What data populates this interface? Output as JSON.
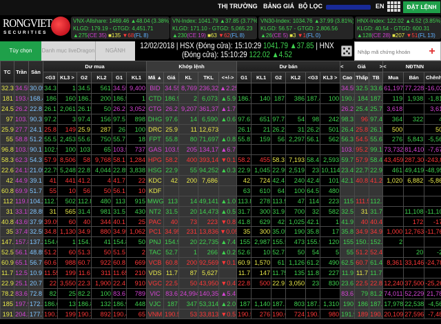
{
  "nav": {
    "market": "THỊ TRƯỜNG",
    "board": "BẢNG GIÁ",
    "filter": "BỘ LỌC",
    "lang": "EN",
    "order": "ĐẶT LỆNH"
  },
  "logo": {
    "name": "RONGVIET",
    "sub": "SECURITIES"
  },
  "indices": [
    {
      "name": "VNX-Allshare: 1469.46 ▲48.04 (3.38%)",
      "vol": "KLGD: 179.19 - GTGD: 4,451.71",
      "up": "▲275",
      "ce": "(CE 35)",
      "ref": "■135",
      "down": "▼68",
      "fl": "(FL 8)"
    },
    {
      "name": "VN-Index: 1041.79 ▲37.85 (3.77%)",
      "vol": "KLGD: 171.10 - GTGD: 5,065.23",
      "up": "▲230",
      "ce": "(CE 19)",
      "ref": "■63",
      "down": "▼62",
      "fl": "(FL 8)"
    },
    {
      "name": "VN30-Index: 1034.76 ▲37.99 (3.81%)",
      "vol": "KLGD: 56.57 - GTGD: 2,806.56",
      "up": "▲26",
      "ce": "(CE 5)",
      "ref": "■3",
      "down": "▼1",
      "fl": "(FL 0)"
    },
    {
      "name": "HNX-Index: 122.02 ▲4.52 (3.85%)",
      "vol": "KLGD: 40.54 - GTGD: 600.31",
      "up": "▲128",
      "ce": "(CE 28)",
      "ref": "■207",
      "down": "▼51",
      "fl": "(FL 13)"
    }
  ],
  "tabs": {
    "custom": "Tùy chọn",
    "watchlist": "Danh mục liveDragon",
    "sector": "NGÀNH"
  },
  "status": {
    "line1a": "12/02/2018 | HSX (Đóng cửa): 15:10:29",
    "hsx": "1041.79 ▲37.85",
    "line1b": "| HNX",
    "line2a": "(Đóng cửa): 15:10:29",
    "hnx": "122.02 ▲4.52"
  },
  "search": {
    "placeholder": "Nhập mã chứng khoán",
    "add": "+"
  },
  "colors": {
    "up": "#3fd24f",
    "down": "#ff3838",
    "ref": "#e8e84a",
    "ceil": "#d444d4",
    "floor": "#7fc4ff",
    "accent": "#1fa04a"
  },
  "table": {
    "groups": {
      "buy": "Dư mua",
      "match": "Khớp lệnh",
      "sell": "Dư bán",
      "price": "Giá",
      "foreign": "NĐTNN",
      "prev": "<",
      "next": ">"
    },
    "headers": [
      "TC",
      "Trần",
      "Sàn",
      "<G3",
      "KL3 >",
      "G2",
      "KL2",
      "G1",
      "KL1",
      "Mã ▲",
      "Giá",
      "KL",
      "TKL",
      "<+/->",
      "G1",
      "KL1",
      "G2",
      "KL2",
      "<G3",
      "KL3 >",
      "Cao",
      "Thấp",
      "TB",
      "Mua",
      "Bán",
      "Chênh"
    ],
    "rows": [
      [
        "32.3",
        "34.55",
        "30.05",
        "34.3",
        "1",
        "34.5",
        "561",
        "34.55",
        "9,400",
        "BID",
        "34.55",
        "8,769",
        "236,327",
        "▲2.25",
        "",
        "",
        "",
        "",
        "",
        "",
        "34.55",
        "32.5",
        "33.65",
        "61,197",
        "77,228",
        "-16,03"
      ],
      [
        "181",
        "193.6",
        "168.4",
        "186",
        "160",
        "186.2",
        "200",
        "186.5",
        "1",
        "CTD",
        "186.9",
        "2",
        "6,073",
        "▲5.9",
        "186.9",
        "140",
        "187",
        "386",
        "187.4",
        "100",
        "190.8",
        "184",
        "187.72",
        "119",
        "1,938",
        "-1,81"
      ],
      [
        "24.5",
        "26.2",
        "22.8",
        "26.1",
        "2,061",
        "26.15",
        "50",
        "26.2",
        "3,052",
        "CTG",
        "26.2",
        "9,207",
        "361,376",
        "▲1.7",
        "",
        "",
        "",
        "",
        "",
        "",
        "26.2",
        "25.4",
        "25.78",
        "3,618",
        "",
        "3,61"
      ],
      [
        "97",
        "103.7",
        "90.3",
        "97.2",
        "3",
        "97.4",
        "156",
        "97.5",
        "898",
        "DHG",
        "97.6",
        "14",
        "6,590",
        "▲0.6",
        "97.6",
        "651",
        "97.7",
        "54",
        "98",
        "242",
        "98.3",
        "96",
        "97.43",
        "364",
        "322",
        "4"
      ],
      [
        "25.9",
        "27.7",
        "24.1",
        "25.8",
        "149",
        "25.9",
        "287",
        "26",
        "100",
        "DRC",
        "25.9",
        "11",
        "12,673",
        "",
        "26.15",
        "21",
        "26.2",
        "31",
        "26.25",
        "501",
        "26.4",
        "25.8",
        "26.13",
        "500",
        "",
        "50"
      ],
      [
        "55",
        "58.8",
        "51.2",
        "55.5",
        "2,453",
        "55.6",
        "750",
        "55.7",
        "18",
        "FPT",
        "55.8",
        "80",
        "71,697",
        "▲0.8",
        "55.8",
        "159",
        "56",
        "2,297",
        "56.1",
        "562",
        "56.3",
        "54.5",
        "55.62",
        "276",
        "5,843",
        "-5,56"
      ],
      [
        "96.8",
        "103.5",
        "90.1",
        "102.9",
        "100",
        "103",
        "65",
        "103.5",
        "737",
        "GAS",
        "103.5",
        "205",
        "134,174",
        "▲6.7",
        "",
        "",
        "",
        "",
        "",
        "",
        "103.5",
        "95.2",
        "99.1",
        "73,732",
        "81,410",
        "-7,67"
      ],
      [
        "58.3",
        "62.3",
        "54.3",
        "57.9",
        "8,506",
        "58",
        "9,768",
        "58.1",
        "1,284",
        "HPG",
        "58.2",
        "400",
        "393,145",
        "▼0.1",
        "58.2",
        "455",
        "58.3",
        "7,193",
        "58.4",
        "2,593",
        "59.7",
        "57.9",
        "58.49",
        "43,459",
        "287,308",
        "-243,8"
      ],
      [
        "22.6",
        "24.15",
        "21.05",
        "22.75",
        "5,248",
        "22.8",
        "4,044",
        "22.85",
        "3,838",
        "HSG",
        "22.9",
        "55",
        "94,252",
        "▲0.3",
        "22.9",
        "1,045",
        "22.95",
        "2,519",
        "23",
        "10,114",
        "23.45",
        "22.75",
        "22.93",
        "461",
        "49,419",
        "-48,95"
      ],
      [
        "42",
        "44.9",
        "39.1",
        "41",
        "441",
        "41.2",
        "4",
        "41.7",
        "22",
        "KDC",
        "42",
        "200",
        "7,686",
        "",
        "42",
        "724",
        "42.4",
        "240",
        "42.45",
        "101",
        "42.1",
        "40.8",
        "41.22",
        "1,020",
        "6,882",
        "-5,86"
      ],
      [
        "60.8",
        "69.9",
        "51.7",
        "55",
        "10",
        "56",
        "50",
        "56.1",
        "10",
        "KDF",
        "",
        "",
        "",
        "",
        "63",
        "610",
        "64",
        "100",
        "64.5",
        "480",
        "",
        "",
        "",
        "",
        "",
        ""
      ],
      [
        "112",
        "119.8",
        "104.2",
        "112.7",
        "502",
        "112.8",
        "480",
        "113",
        "915",
        "MWG",
        "113",
        "14",
        "49,141",
        "▲1.0",
        "113.8",
        "278",
        "113.9",
        "47",
        "114",
        "223",
        "115",
        "111.5",
        "112.35",
        "",
        "",
        ""
      ],
      [
        "31",
        "33.15",
        "28.85",
        "31",
        "565",
        "31.4",
        "981",
        "31.5",
        "430",
        "NT2",
        "31.5",
        "20",
        "14,473",
        "▲0.5",
        "31.7",
        "300",
        "31.9",
        "700",
        "32",
        "582",
        "32.5",
        "31",
        "31.78",
        "",
        "11,108",
        "-11,10"
      ],
      [
        "40.8",
        "43.65",
        "37.95",
        "39.05",
        "60",
        "40",
        "344",
        "40.1",
        "25",
        "PAC",
        "40",
        "73",
        "223",
        "▼0.8",
        "41.8",
        "629",
        "42",
        "1,025",
        "42.1",
        "1",
        "41.9",
        "40",
        "40.43",
        "",
        "172",
        "-17"
      ],
      [
        "35",
        "37.45",
        "32.55",
        "34.8",
        "1,130",
        "34.9",
        "880",
        "34.95",
        "1,062",
        "PC1",
        "34.95",
        "231",
        "13,836",
        "▼0.05",
        "35",
        "300",
        "35.05",
        "190",
        "35.8",
        "17",
        "35.8",
        "34.9",
        "34.99",
        "1,000",
        "12,763",
        "-11,76"
      ],
      [
        "147.5",
        "157.8",
        "137.2",
        "154.6",
        "1",
        "154.7",
        "41",
        "154.8",
        "50",
        "PNJ",
        "154.9",
        "20",
        "22,735",
        "▲7.4",
        "155",
        "2,987",
        "155.5",
        "473",
        "155.9",
        "120",
        "155",
        "150.2",
        "152.18",
        "2",
        "",
        ""
      ],
      [
        "52.5",
        "56.1",
        "48.85",
        "51.2",
        "60",
        "51.3",
        "50",
        "51.5",
        "2",
        "TAC",
        "52.7",
        "1",
        "266",
        "▲0.2",
        "52.6",
        "10",
        "52.7",
        "50",
        "54",
        "5",
        "55",
        "51.2",
        "52.43",
        "",
        "20",
        "-2"
      ],
      [
        "60.9",
        "65.1",
        "56.7",
        "60.6",
        "988",
        "60.7",
        "922",
        "60.8",
        "669",
        "VCB",
        "60.8",
        "200",
        "92,569",
        "▼0.1",
        "60.9",
        "1,570",
        "61",
        "1,126",
        "61.2",
        "490",
        "62.5",
        "60.7",
        "61.43",
        "8,361",
        "33,146",
        "-24,78"
      ],
      [
        "11.7",
        "12.5",
        "10.9",
        "11.55",
        "199",
        "11.6",
        "311",
        "11.65",
        "210",
        "VDS",
        "11.7",
        "87",
        "5,627",
        "",
        "11.7",
        "147",
        "11.75",
        "135",
        "11.8",
        "227",
        "11.9",
        "11.7",
        "11.77",
        "",
        "",
        ""
      ],
      [
        "22.9",
        "25.1",
        "20.7",
        "22",
        "3,550",
        "22.3",
        "1,900",
        "22.4",
        "910",
        "VGC",
        "22.5",
        "50",
        "43,950",
        "▼0.4",
        "22.8",
        "500",
        "22.9",
        "3,050",
        "23",
        "830",
        "23.6",
        "22.5",
        "22.88",
        "12,240",
        "37,500",
        "-25,26"
      ],
      [
        "78.2",
        "83.6",
        "72.8",
        "82",
        "25",
        "82.2",
        "100",
        "83.6",
        "789",
        "VIC",
        "83.6",
        "24,994",
        "140,359",
        "▲5.4",
        "",
        "",
        "",
        "",
        "",
        "",
        "83.6",
        "79",
        "81.25",
        "74,011",
        "52,229",
        "21,78"
      ],
      [
        "185",
        "197.9",
        "172.1",
        "186.6",
        "13",
        "186.8",
        "132",
        "186.9",
        "448",
        "VJC",
        "187",
        "347",
        "53,314",
        "▲2.0",
        "187",
        "1,140",
        "187.1",
        "803",
        "187.2",
        "1,310",
        "190",
        "186",
        "187.29",
        "17,978",
        "22,538",
        "-4,56"
      ],
      [
        "191",
        "204.3",
        "177.7",
        "190.2",
        "199",
        "190.3",
        "892",
        "190.4",
        "65",
        "VNM",
        "190.5",
        "53",
        "33,813",
        "▼0.5",
        "190.5",
        "276",
        "190.6",
        "724",
        "190.7",
        "980",
        "191.9",
        "189",
        "190.58",
        "20,109",
        "27,596",
        "-7,48"
      ]
    ]
  }
}
